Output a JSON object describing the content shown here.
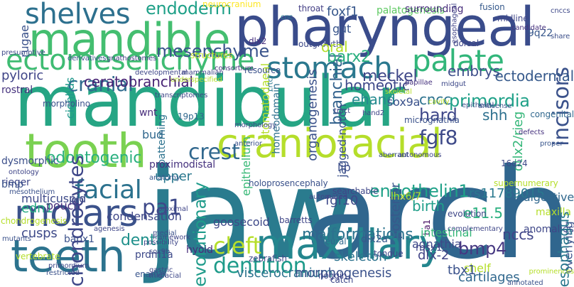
{
  "words": [
    {
      "text": "jaw",
      "color": "#2a7b8e",
      "vertical": false
    },
    {
      "text": "arch",
      "color": "#30668e",
      "vertical": false
    },
    {
      "text": "mandibular",
      "color": "#26a584",
      "vertical": false
    },
    {
      "text": "pharyngeal",
      "color": "#3a4c8b",
      "vertical": false
    },
    {
      "text": "mandible",
      "color": "#44be70",
      "vertical": false
    },
    {
      "text": "tooth",
      "color": "#7ad151",
      "vertical": false
    },
    {
      "text": "craniofacial",
      "color": "#b5de2b",
      "vertical": false
    },
    {
      "text": "teeth",
      "color": "#2c738e",
      "vertical": false
    },
    {
      "text": "maxillary",
      "color": "#24868e",
      "vertical": false
    },
    {
      "text": "molars",
      "color": "#3b528b",
      "vertical": false
    },
    {
      "text": "ectomesenchyme",
      "color": "#3fbc73",
      "vertical": false
    },
    {
      "text": "shelves",
      "color": "#2d708e",
      "vertical": false
    },
    {
      "text": "stomach",
      "color": "#2a788e",
      "vertical": false
    },
    {
      "text": "palate",
      "color": "#32b67a",
      "vertical": false
    },
    {
      "text": "incisors",
      "color": "#3b528b",
      "vertical": true
    },
    {
      "text": "dentition",
      "color": "#1e9b8a",
      "vertical": false
    },
    {
      "text": "cleft",
      "color": "#b5de2b",
      "vertical": false
    },
    {
      "text": "facial",
      "color": "#2c728e",
      "vertical": false
    },
    {
      "text": "crest",
      "color": "#31688e",
      "vertical": false
    },
    {
      "text": "endoderm",
      "color": "#1fa088",
      "vertical": false
    },
    {
      "text": "mesenchyme",
      "color": "#3a548c",
      "vertical": false
    },
    {
      "text": "cranial",
      "color": "#2f6b8e",
      "vertical": false
    },
    {
      "text": "ceratobranchial",
      "color": "#482475",
      "vertical": false
    },
    {
      "text": "branchial",
      "color": "#33628d",
      "vertical": true
    },
    {
      "text": "barx2",
      "color": "#2ab07f",
      "vertical": false
    },
    {
      "text": "homeotic",
      "color": "#3e4989",
      "vertical": false
    },
    {
      "text": "primordia",
      "color": "#1fa188",
      "vertical": false
    },
    {
      "text": "embrys",
      "color": "#3d4e8a",
      "vertical": false
    },
    {
      "text": "ectodermal",
      "color": "#375a8c",
      "vertical": false
    },
    {
      "text": "meckel",
      "color": "#3f4788",
      "vertical": false
    },
    {
      "text": "pyloric",
      "color": "#404588",
      "vertical": false
    },
    {
      "text": "rostral",
      "color": "#46327e",
      "vertical": false
    },
    {
      "text": "cichlids",
      "color": "#1f988b",
      "vertical": true
    },
    {
      "text": "rugae",
      "color": "#3b528b",
      "vertical": true
    },
    {
      "text": "presumptive",
      "color": "#3e4a89",
      "vertical": false
    },
    {
      "text": "derivatives",
      "color": "#3a538b",
      "vertical": false
    },
    {
      "text": "gnathostomes",
      "color": "#433e85",
      "vertical": false
    },
    {
      "text": "structures",
      "color": "#c2df23",
      "vertical": false
    },
    {
      "text": "dlx2",
      "color": "#46307e",
      "vertical": false
    },
    {
      "text": "consortium",
      "color": "#46327e",
      "vertical": false
    },
    {
      "text": "neurocranium",
      "color": "#fde725",
      "vertical": false
    },
    {
      "text": "throat",
      "color": "#433e85",
      "vertical": false
    },
    {
      "text": "outgrowth",
      "color": "#3e4989",
      "vertical": false
    },
    {
      "text": "foxf1",
      "color": "#38588c",
      "vertical": false
    },
    {
      "text": "palatogenesis",
      "color": "#5ec962",
      "vertical": false
    },
    {
      "text": "surrounding",
      "color": "#472d7b",
      "vertical": false
    },
    {
      "text": "fusion",
      "color": "#375a8c",
      "vertical": false
    },
    {
      "text": "midline",
      "color": "#404688",
      "vertical": false
    },
    {
      "text": "cnc",
      "color": "#2a778e",
      "vertical": false
    },
    {
      "text": "gut",
      "color": "#39558c",
      "vertical": false
    },
    {
      "text": "oral",
      "color": "#b5de2b",
      "vertical": false
    },
    {
      "text": "dorsal",
      "color": "#404688",
      "vertical": false
    },
    {
      "text": "cnccs",
      "color": "#3e4989",
      "vertical": false
    },
    {
      "text": "9q22",
      "color": "#38588c",
      "vertical": false
    },
    {
      "text": "share",
      "color": "#3c4f8a",
      "vertical": false
    },
    {
      "text": "candidate",
      "color": "#46327e",
      "vertical": false
    },
    {
      "text": "esophageal",
      "color": "#414487",
      "vertical": true
    },
    {
      "text": "stomatodaeal",
      "color": "#b5de2b",
      "vertical": true
    },
    {
      "text": "organogenesis",
      "color": "#3b528b",
      "vertical": true
    },
    {
      "text": "homeodomain",
      "color": "#2d708e",
      "vertical": true
    },
    {
      "text": "jagged-notch",
      "color": "#3b528b",
      "vertical": true
    },
    {
      "text": "ehand",
      "color": "#23898e",
      "vertical": false
    },
    {
      "text": "sox9a",
      "color": "#3b528b",
      "vertical": false
    },
    {
      "text": "shh",
      "color": "#2d708e",
      "vertical": false
    },
    {
      "text": "cncc",
      "color": "#2c728e",
      "vertical": false
    },
    {
      "text": "hard",
      "color": "#3f4889",
      "vertical": false
    },
    {
      "text": "fgf8",
      "color": "#3e4a89",
      "vertical": false
    },
    {
      "text": "otlx2/rieg",
      "color": "#35b779",
      "vertical": true
    },
    {
      "text": "patterning",
      "color": "#2c728e",
      "vertical": true
    },
    {
      "text": "wnt",
      "color": "#472c7a",
      "vertical": false
    },
    {
      "text": "19p13",
      "color": "#31688e",
      "vertical": false
    },
    {
      "text": "bud",
      "color": "#31688e",
      "vertical": false
    },
    {
      "text": "odontogenic",
      "color": "#2ab07f",
      "vertical": false
    },
    {
      "text": "dysmorphic",
      "color": "#3c4f8a",
      "vertical": false
    },
    {
      "text": "rieger",
      "color": "#3f4788",
      "vertical": false
    },
    {
      "text": "bmp",
      "color": "#3b528b",
      "vertical": false
    },
    {
      "text": "multicuspid",
      "color": "#3e4a89",
      "vertical": false
    },
    {
      "text": "proximodistal",
      "color": "#46327e",
      "vertical": false
    },
    {
      "text": "upper",
      "color": "#2a788e",
      "vertical": false
    },
    {
      "text": "anatomy",
      "color": "#38588c",
      "vertical": false
    },
    {
      "text": "epithelium",
      "color": "#38b977",
      "vertical": true
    },
    {
      "text": "edn1",
      "color": "#25ab82",
      "vertical": false
    },
    {
      "text": "pouch",
      "color": "#472f7d",
      "vertical": false
    },
    {
      "text": "pa1",
      "color": "#3e4989",
      "vertical": false
    },
    {
      "text": "condensation",
      "color": "#3f4788",
      "vertical": false
    },
    {
      "text": "goosecoid",
      "color": "#3e4989",
      "vertical": false
    },
    {
      "text": "endothelin1",
      "color": "#1fa188",
      "vertical": false
    },
    {
      "text": "rs11789015",
      "color": "#2a788e",
      "vertical": false
    },
    {
      "text": "digestive",
      "color": "#31688e",
      "vertical": false
    },
    {
      "text": "birth",
      "color": "#1f9e89",
      "vertical": false
    },
    {
      "text": "e11.5",
      "color": "#2ab07f",
      "vertical": false
    },
    {
      "text": "fgf10",
      "color": "#3e4989",
      "vertical": false
    },
    {
      "text": "lip",
      "color": "#3d4e8a",
      "vertical": false
    },
    {
      "text": "posterior",
      "color": "#38588c",
      "vertical": true
    },
    {
      "text": "ba1",
      "color": "#471164",
      "vertical": true
    },
    {
      "text": "intestinal",
      "color": "#35b779",
      "vertical": false
    },
    {
      "text": "maxilla",
      "color": "#b5de2b",
      "vertical": false
    },
    {
      "text": "cusps",
      "color": "#3e4a89",
      "vertical": false
    },
    {
      "text": "dental",
      "color": "#21918c",
      "vertical": false
    },
    {
      "text": "bapx1",
      "color": "#3b528b",
      "vertical": false
    },
    {
      "text": "malformations",
      "color": "#2c728e",
      "vertical": false
    },
    {
      "text": "agnathia",
      "color": "#3e4989",
      "vertical": false
    },
    {
      "text": "nccs",
      "color": "#404588",
      "vertical": false
    },
    {
      "text": "bmp4",
      "color": "#453781",
      "vertical": false
    },
    {
      "text": "shelf",
      "color": "#b5de2b",
      "vertical": false
    },
    {
      "text": "anomalies",
      "color": "#3f4788",
      "vertical": false
    },
    {
      "text": "overlying",
      "color": "#3b528b",
      "vertical": true
    },
    {
      "text": "esophagus",
      "color": "#2a788e",
      "vertical": true
    },
    {
      "text": "msx1",
      "color": "#404588",
      "vertical": false
    },
    {
      "text": "dlx2a",
      "color": "#38588c",
      "vertical": false
    },
    {
      "text": "chondrocytes",
      "color": "#3f4889",
      "vertical": true
    },
    {
      "text": "evolutionary",
      "color": "#1e9b8a",
      "vertical": true
    },
    {
      "text": "viscerocranium",
      "color": "#2c738e",
      "vertical": false
    },
    {
      "text": "morphogenesis",
      "color": "#3b528b",
      "vertical": false
    },
    {
      "text": "skeleton",
      "color": "#2c728e",
      "vertical": false
    },
    {
      "text": "dlx-2",
      "color": "#414487",
      "vertical": false
    },
    {
      "text": "cartilages",
      "color": "#31688e",
      "vertical": false
    },
    {
      "text": "tbx1",
      "color": "#3b528b",
      "vertical": false
    },
    {
      "text": "prdm1a",
      "color": "#3e4a89",
      "vertical": false
    },
    {
      "text": "enamel",
      "color": "#39558c",
      "vertical": false
    },
    {
      "text": "catch",
      "color": "#3e4989",
      "vertical": false
    },
    {
      "text": "tongue",
      "color": "#3f4788",
      "vertical": false
    },
    {
      "text": "zebrafish",
      "color": "#3f4788",
      "vertical": false
    },
    {
      "text": "neural",
      "color": "#31688e",
      "vertical": false
    },
    {
      "text": "evolution",
      "color": "#3f4788",
      "vertical": false
    },
    {
      "text": "barretts",
      "color": "#404688",
      "vertical": false
    },
    {
      "text": "hyoid",
      "color": "#472c7a",
      "vertical": false
    },
    {
      "text": "lhx6/7",
      "color": "#b5de2b",
      "vertical": false
    },
    {
      "text": "supernumerary",
      "color": "#b5de2b",
      "vertical": false
    },
    {
      "text": "16q24",
      "color": "#3e4a89",
      "vertical": false
    },
    {
      "text": "defects",
      "color": "#46327e",
      "vertical": false
    },
    {
      "text": "proper",
      "color": "#39568c",
      "vertical": false
    },
    {
      "text": "congenital",
      "color": "#31688e",
      "vertical": false
    },
    {
      "text": "resource",
      "color": "#3b528b",
      "vertical": false
    },
    {
      "text": "crtcl",
      "color": "#2a788e",
      "vertical": true
    },
    {
      "text": "papillae",
      "color": "#46327e",
      "vertical": false
    },
    {
      "text": "micrognathia",
      "color": "#3b528b",
      "vertical": false
    },
    {
      "text": "cavity",
      "color": "#b5de2b",
      "vertical": false
    },
    {
      "text": "epithelial",
      "color": "#3b528b",
      "vertical": false
    },
    {
      "text": "antisense",
      "color": "#3b528b",
      "vertical": false
    },
    {
      "text": "midgut",
      "color": "#3e4989",
      "vertical": false
    },
    {
      "text": "skeletal",
      "color": "#b5de2b",
      "vertical": false
    },
    {
      "text": "hand2",
      "color": "#404688",
      "vertical": false
    },
    {
      "text": "morpholino",
      "color": "#3b528b",
      "vertical": false
    },
    {
      "text": "transcriptomes",
      "color": "#3f4788",
      "vertical": false
    },
    {
      "text": "morphology",
      "color": "#3e4989",
      "vertical": false
    },
    {
      "text": "underspecified",
      "color": "#b5de2b",
      "vertical": false
    },
    {
      "text": "developmental",
      "color": "#3f4788",
      "vertical": false
    },
    {
      "text": "mammalian",
      "color": "#404688",
      "vertical": false
    },
    {
      "text": "ontology",
      "color": "#404688",
      "vertical": false
    },
    {
      "text": "mesothelium",
      "color": "#3b528b",
      "vertical": false
    },
    {
      "text": "chondrogenesis",
      "color": "#b5de2b",
      "vertical": false
    },
    {
      "text": "vertebrate",
      "color": "#b5de2b",
      "vertical": false
    },
    {
      "text": "primordium",
      "color": "#3e4989",
      "vertical": false
    },
    {
      "text": "holoprosencephaly",
      "color": "#3b528b",
      "vertical": false
    },
    {
      "text": "searchable",
      "color": "#3f4788",
      "vertical": false
    },
    {
      "text": "aberrant",
      "color": "#3b528b",
      "vertical": false
    },
    {
      "text": "autonomous",
      "color": "#3f4788",
      "vertical": false
    },
    {
      "text": "proximal",
      "color": "#404688",
      "vertical": false
    },
    {
      "text": "medial",
      "color": "#3b528b",
      "vertical": false
    },
    {
      "text": "framework",
      "color": "#3f4788",
      "vertical": false
    },
    {
      "text": "possibility",
      "color": "#3f4788",
      "vertical": false
    },
    {
      "text": "restricted",
      "color": "#3b528b",
      "vertical": false
    },
    {
      "text": "midfacial",
      "color": "#3e4989",
      "vertical": false
    },
    {
      "text": "noggin",
      "color": "#3f4788",
      "vertical": false
    },
    {
      "text": "annotated",
      "color": "#3b528b",
      "vertical": false
    },
    {
      "text": "complementary",
      "color": "#3f4788",
      "vertical": false
    },
    {
      "text": "sox9b",
      "color": "#3e4989",
      "vertical": false
    },
    {
      "text": "gastric",
      "color": "#3f4788",
      "vertical": false
    },
    {
      "text": "mutants",
      "color": "#3b528b",
      "vertical": false
    },
    {
      "text": "tract",
      "color": "#404688",
      "vertical": false
    },
    {
      "text": "anterior",
      "color": "#3b528b",
      "vertical": false
    },
    {
      "text": "agenesis",
      "color": "#3f4788",
      "vertical": false
    },
    {
      "text": "automated",
      "color": "#3f4788",
      "vertical": false
    },
    {
      "text": "prominences",
      "color": "#b5de2b",
      "vertical": false
    }
  ]
}
